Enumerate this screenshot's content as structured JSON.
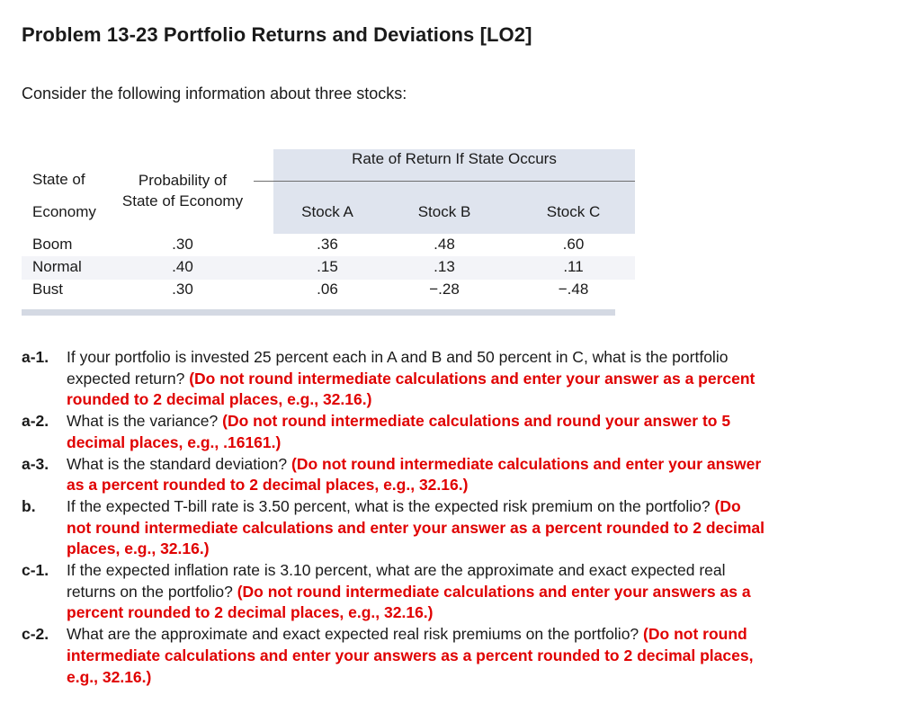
{
  "title": "Problem 13-23 Portfolio Returns and Deviations [LO2]",
  "intro": "Consider the following information about three stocks:",
  "table": {
    "span_header": "Rate of Return If State Occurs",
    "col_state_line1": "State of",
    "col_state_line2": "Economy",
    "col_prob": "Probability of State of Economy",
    "col_a": "Stock A",
    "col_b": "Stock B",
    "col_c": "Stock C",
    "rows": [
      {
        "state": "Boom",
        "prob": ".30",
        "a": ".36",
        "b": ".48",
        "c": ".60"
      },
      {
        "state": "Normal",
        "prob": ".40",
        "a": ".15",
        "b": ".13",
        "c": ".11"
      },
      {
        "state": "Bust",
        "prob": ".30",
        "a": ".06",
        "b": "−.28",
        "c": "−.48"
      }
    ]
  },
  "questions": [
    {
      "label": "a-1.",
      "text": "If your portfolio is invested 25 percent each in A and B and 50 percent in C, what is the portfolio expected return?",
      "instruction": "(Do not round intermediate calculations and enter your answer as a percent rounded to 2 decimal places, e.g., 32.16.)"
    },
    {
      "label": "a-2.",
      "text": "What is the variance?",
      "instruction": "(Do not round intermediate calculations and round your answer to 5 decimal places, e.g., .16161.)"
    },
    {
      "label": "a-3.",
      "text": "What is the standard deviation?",
      "instruction": "(Do not round intermediate calculations and enter your answer as a percent rounded to 2 decimal places, e.g., 32.16.)"
    },
    {
      "label": "b.",
      "text": "If the expected T-bill rate is 3.50 percent, what is the expected risk premium on the portfolio?",
      "instruction": "(Do not round intermediate calculations and enter your answer as a percent rounded to 2 decimal places, e.g., 32.16.)"
    },
    {
      "label": "c-1.",
      "text": "If the expected inflation rate is 3.10 percent, what are the approximate and exact expected real returns on the portfolio?",
      "instruction": "(Do not round intermediate calculations and enter your answers as a percent rounded to 2 decimal places, e.g., 32.16.)"
    },
    {
      "label": "c-2.",
      "text": "What are the approximate and exact expected real risk premiums on the portfolio?",
      "instruction": "(Do not round intermediate calculations and enter your answers as a percent rounded to 2 decimal places, e.g., 32.16.)"
    }
  ]
}
